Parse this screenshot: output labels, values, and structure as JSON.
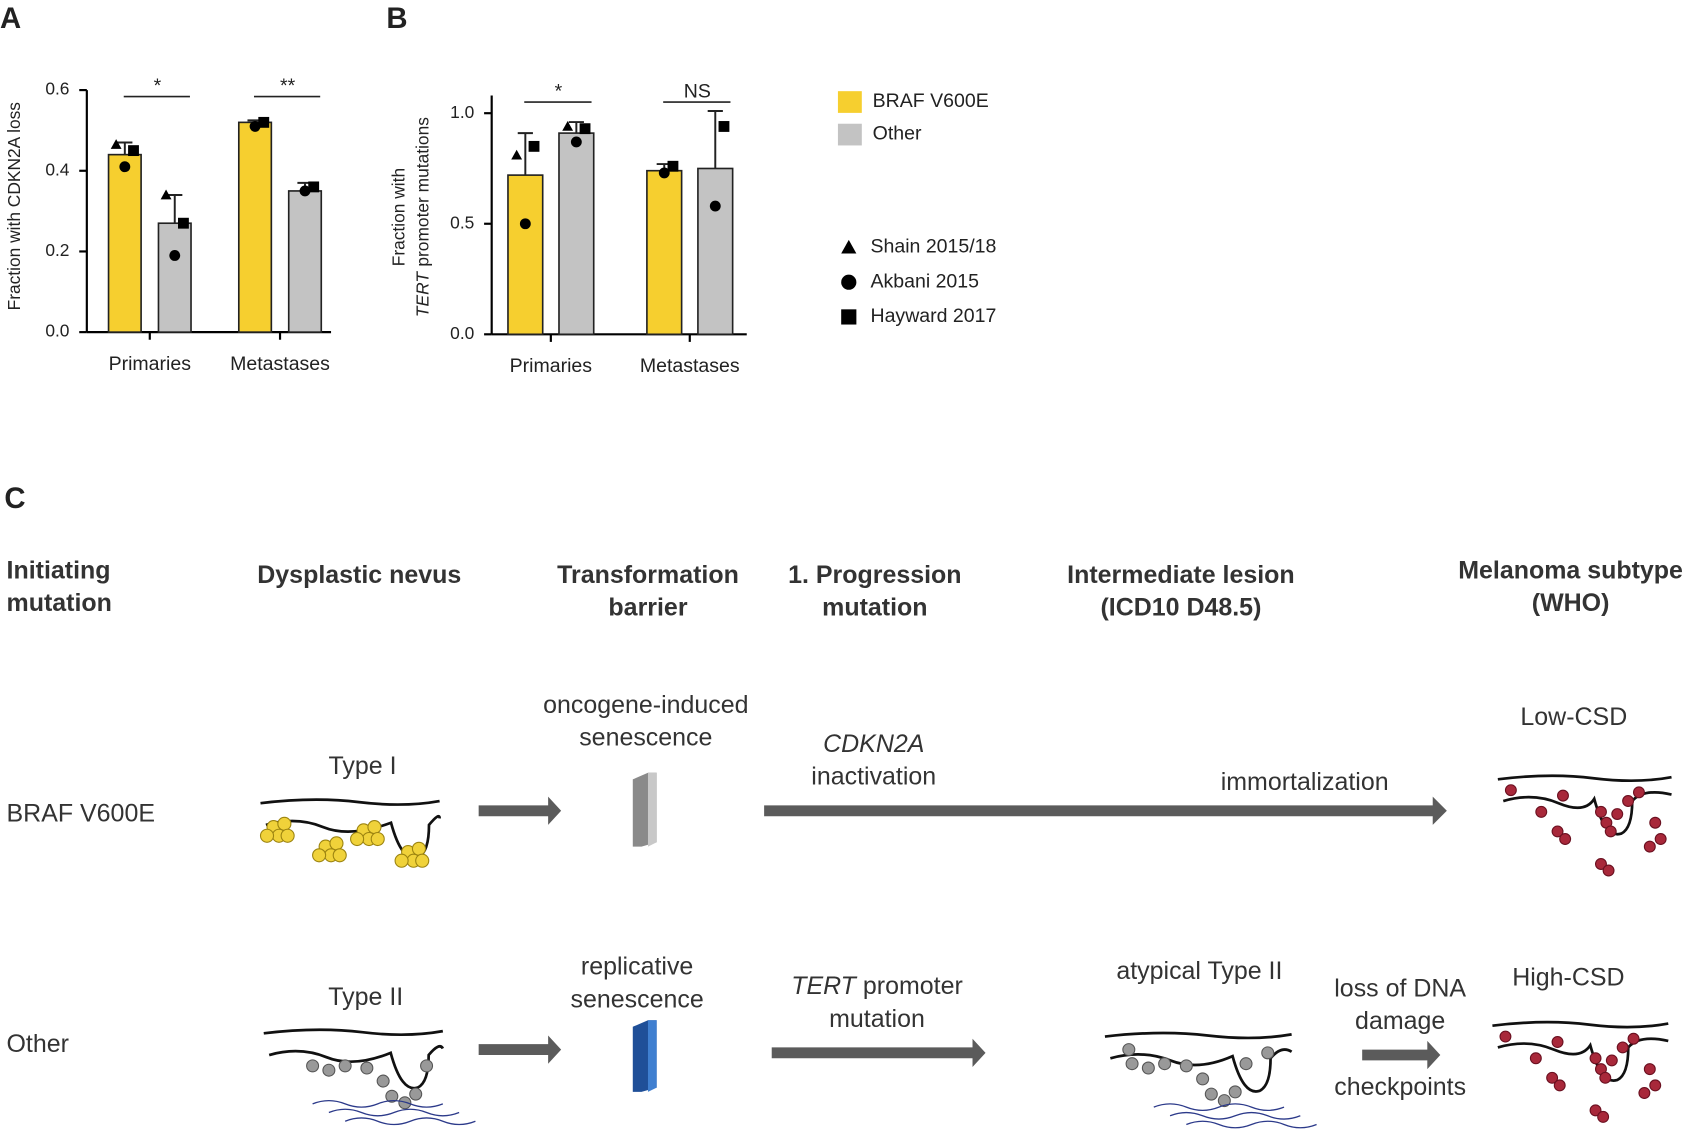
{
  "panels": [
    "A",
    "B",
    "C"
  ],
  "chart_data": [
    {
      "type": "bar",
      "ylabel": "Fraction with CDKN2A loss",
      "categories": [
        "Primaries",
        "Metastases"
      ],
      "series": [
        {
          "color": "#f6cf2f",
          "values": [
            0.44,
            0.52
          ],
          "errors": [
            0.03,
            0.005
          ],
          "points": [
            [
              0.465,
              0.41,
              0.45
            ],
            [
              null,
              0.51,
              0.52
            ]
          ]
        },
        {
          "color": "#c3c3c3",
          "values": [
            0.27,
            0.35
          ],
          "errors": [
            0.07,
            0.02
          ],
          "points": [
            [
              0.34,
              0.19,
              0.27
            ],
            [
              null,
              0.35,
              0.36
            ]
          ]
        }
      ],
      "significance": [
        "*",
        "**"
      ],
      "ylim": [
        0,
        0.6
      ],
      "yticks": [
        {
          "value": 0,
          "label": "0.0"
        },
        {
          "value": 0.2,
          "label": "0.2"
        },
        {
          "value": 0.4,
          "label": "0.4"
        },
        {
          "value": 0.6,
          "label": "0.6"
        }
      ]
    },
    {
      "type": "bar",
      "ylabel": [
        "Fraction with",
        "TERT",
        "promoter mutations"
      ],
      "categories": [
        "Primaries",
        "Metastases"
      ],
      "series": [
        {
          "name": "BRAF V600E",
          "color": "#f6cf2f",
          "values": [
            0.72,
            0.74
          ],
          "errors": [
            0.19,
            0.03
          ],
          "points": [
            [
              0.81,
              0.5,
              0.85
            ],
            [
              null,
              0.73,
              0.76
            ]
          ]
        },
        {
          "name": "Other",
          "color": "#c3c3c3",
          "values": [
            0.91,
            0.75
          ],
          "errors": [
            0.05,
            0.26
          ],
          "points": [
            [
              0.94,
              0.87,
              0.93
            ],
            [
              null,
              0.58,
              0.94
            ]
          ]
        }
      ],
      "significance": [
        "*",
        "NS"
      ],
      "ylim": [
        0,
        1.08
      ],
      "yticks": [
        {
          "value": 0,
          "label": "0.0"
        },
        {
          "value": 0.5,
          "label": "0.5"
        },
        {
          "value": 1,
          "label": "1.0"
        }
      ],
      "legend": "right",
      "markers": [
        {
          "label": "Shain 2015/18",
          "shape": "triangle"
        },
        {
          "label": "Akbani 2015",
          "shape": "circle"
        },
        {
          "label": "Hayward 2017",
          "shape": "square"
        }
      ]
    }
  ],
  "diagram": {
    "columns": [
      "Initiating mutation",
      "Dysplastic nevus",
      "Transformation barrier",
      "1. Progression mutation",
      "Intermediate lesion (ICD10 D48.5)",
      "Melanoma subtype (WHO)"
    ],
    "rows": [
      {
        "mutation": "BRAF V600E",
        "nevus": "Type I",
        "barrier": "oncogene-induced senescence",
        "progression": [
          "CDKN2A",
          "inactivation"
        ],
        "step": "immortalization",
        "subtype": "Low-CSD"
      },
      {
        "mutation": "Other",
        "nevus": "Type II",
        "barrier": "replicative senescence",
        "progression": [
          "TERT",
          "promoter mutation"
        ],
        "lesion": "atypical Type II",
        "step": [
          "loss of DNA",
          "damage",
          "checkpoints"
        ],
        "subtype": "High-CSD"
      }
    ]
  }
}
